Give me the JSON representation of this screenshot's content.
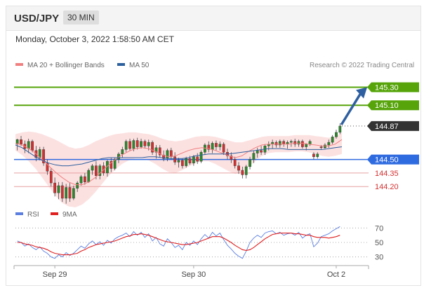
{
  "header": {
    "symbol": "USD/JPY",
    "timeframe": "30 MIN"
  },
  "timestamp": "Monday, October 3, 2022 1:58:50 AM CET",
  "legend": {
    "bollinger": {
      "label": "MA 20 + Bollinger Bands",
      "color": "#f08080"
    },
    "ma50": {
      "label": "MA 50",
      "color": "#2c5f9e"
    },
    "rsi": {
      "label": "RSI",
      "color": "#5b7fe0"
    },
    "ma9": {
      "label": "9MA",
      "color": "#e02020"
    }
  },
  "credit": "Research © 2022 Trading Central",
  "colors": {
    "up": "#2a8a2a",
    "down": "#d43030",
    "wick": "#444444",
    "band": "#fcdede",
    "green_level": "#56a40a",
    "blue_level": "#2f6be0",
    "red_level": "#e8a0a0",
    "arrow": "#2e5fa0"
  },
  "chart_data": [
    {
      "type": "candlestick",
      "ylim": [
        144.0,
        145.42
      ],
      "levels": [
        {
          "value": 145.3,
          "label": "145.30",
          "style": "green"
        },
        {
          "value": 145.1,
          "label": "145.10",
          "style": "green"
        },
        {
          "value": 144.87,
          "label": "144.87",
          "style": "current"
        },
        {
          "value": 144.5,
          "label": "144.50",
          "style": "blue"
        },
        {
          "value": 144.35,
          "label": "144.35",
          "style": "red"
        },
        {
          "value": 144.2,
          "label": "144.20",
          "style": "red"
        }
      ],
      "x_ticks": [
        "Sep 29",
        "Sep 30",
        "Oct 2"
      ],
      "candles": [
        [
          144.67,
          144.73,
          144.6,
          144.72
        ],
        [
          144.72,
          144.76,
          144.65,
          144.67
        ],
        [
          144.67,
          144.71,
          144.57,
          144.62
        ],
        [
          144.62,
          144.73,
          144.57,
          144.7
        ],
        [
          144.7,
          144.72,
          144.58,
          144.6
        ],
        [
          144.6,
          144.65,
          144.48,
          144.52
        ],
        [
          144.52,
          144.64,
          144.49,
          144.61
        ],
        [
          144.61,
          144.64,
          144.43,
          144.46
        ],
        [
          144.46,
          144.5,
          144.33,
          144.37
        ],
        [
          144.37,
          144.4,
          144.2,
          144.24
        ],
        [
          144.24,
          144.3,
          144.09,
          144.13
        ],
        [
          144.13,
          144.25,
          144.06,
          144.21
        ],
        [
          144.21,
          144.25,
          144.03,
          144.07
        ],
        [
          144.07,
          144.23,
          144.01,
          144.19
        ],
        [
          144.19,
          144.24,
          144.03,
          144.07
        ],
        [
          144.07,
          144.21,
          144.05,
          144.18
        ],
        [
          144.18,
          144.26,
          144.14,
          144.24
        ],
        [
          144.24,
          144.33,
          144.21,
          144.31
        ],
        [
          144.31,
          144.35,
          144.22,
          144.25
        ],
        [
          144.25,
          144.4,
          144.24,
          144.38
        ],
        [
          144.38,
          144.45,
          144.33,
          144.43
        ],
        [
          144.43,
          144.48,
          144.28,
          144.32
        ],
        [
          144.32,
          144.45,
          144.28,
          144.43
        ],
        [
          144.43,
          144.47,
          144.32,
          144.35
        ],
        [
          144.35,
          144.5,
          144.31,
          144.48
        ],
        [
          144.48,
          144.52,
          144.36,
          144.4
        ],
        [
          144.4,
          144.52,
          144.38,
          144.5
        ],
        [
          144.5,
          144.58,
          144.46,
          144.56
        ],
        [
          144.56,
          144.64,
          144.52,
          144.61
        ],
        [
          144.61,
          144.72,
          144.58,
          144.7
        ],
        [
          144.7,
          144.73,
          144.6,
          144.62
        ],
        [
          144.62,
          144.73,
          144.59,
          144.71
        ],
        [
          144.71,
          144.74,
          144.61,
          144.64
        ],
        [
          144.64,
          144.73,
          144.62,
          144.7
        ],
        [
          144.7,
          144.72,
          144.62,
          144.65
        ],
        [
          144.65,
          144.72,
          144.6,
          144.69
        ],
        [
          144.69,
          144.71,
          144.55,
          144.58
        ],
        [
          144.58,
          144.66,
          144.51,
          144.63
        ],
        [
          144.63,
          144.66,
          144.52,
          144.55
        ],
        [
          144.55,
          144.6,
          144.48,
          144.51
        ],
        [
          144.51,
          144.62,
          144.48,
          144.6
        ],
        [
          144.6,
          144.63,
          144.5,
          144.53
        ],
        [
          144.53,
          144.58,
          144.44,
          144.47
        ],
        [
          144.47,
          144.52,
          144.41,
          144.49
        ],
        [
          144.49,
          144.51,
          144.4,
          144.43
        ],
        [
          144.43,
          144.53,
          144.41,
          144.51
        ],
        [
          144.51,
          144.54,
          144.44,
          144.46
        ],
        [
          144.46,
          144.55,
          144.43,
          144.53
        ],
        [
          144.53,
          144.57,
          144.45,
          144.48
        ],
        [
          144.48,
          144.6,
          144.46,
          144.58
        ],
        [
          144.58,
          144.68,
          144.55,
          144.66
        ],
        [
          144.66,
          144.7,
          144.58,
          144.61
        ],
        [
          144.61,
          144.7,
          144.57,
          144.68
        ],
        [
          144.68,
          144.71,
          144.6,
          144.64
        ],
        [
          144.64,
          144.7,
          144.6,
          144.67
        ],
        [
          144.67,
          144.69,
          144.55,
          144.58
        ],
        [
          144.58,
          144.62,
          144.5,
          144.54
        ],
        [
          144.54,
          144.58,
          144.46,
          144.5
        ],
        [
          144.5,
          144.53,
          144.4,
          144.43
        ],
        [
          144.43,
          144.47,
          144.34,
          144.38
        ],
        [
          144.38,
          144.42,
          144.29,
          144.33
        ],
        [
          144.33,
          144.44,
          144.29,
          144.42
        ],
        [
          144.42,
          144.53,
          144.39,
          144.5
        ],
        [
          144.5,
          144.6,
          144.46,
          144.57
        ],
        [
          144.57,
          144.63,
          144.52,
          144.6
        ],
        [
          144.6,
          144.65,
          144.55,
          144.58
        ],
        [
          144.58,
          144.67,
          144.55,
          144.65
        ],
        [
          144.65,
          144.7,
          144.6,
          144.67
        ],
        [
          144.67,
          144.72,
          144.62,
          144.69
        ],
        [
          144.69,
          144.71,
          144.63,
          144.66
        ],
        [
          144.66,
          144.72,
          144.63,
          144.7
        ],
        [
          144.7,
          144.72,
          144.64,
          144.67
        ],
        [
          144.67,
          144.71,
          144.62,
          144.69
        ],
        [
          144.69,
          144.72,
          144.64,
          144.7
        ],
        [
          144.7,
          144.73,
          144.64,
          144.67
        ],
        [
          144.67,
          144.72,
          144.64,
          144.7
        ],
        [
          144.7,
          144.72,
          144.62,
          144.64
        ],
        [
          144.64,
          144.68,
          144.6,
          144.67
        ],
        [
          144.67,
          144.72,
          144.65,
          144.7
        ],
        [
          144.56,
          144.58,
          144.5,
          144.53
        ],
        [
          144.53,
          144.58,
          144.51,
          144.56
        ],
        [
          144.64,
          144.66,
          144.61,
          144.63
        ],
        [
          144.63,
          144.68,
          144.61,
          144.66
        ],
        [
          144.66,
          144.72,
          144.63,
          144.69
        ],
        [
          144.69,
          144.77,
          144.67,
          144.75
        ],
        [
          144.75,
          144.83,
          144.73,
          144.8
        ],
        [
          144.8,
          144.9,
          144.78,
          144.87
        ]
      ],
      "ma20": [
        144.68,
        144.66,
        144.62,
        144.57,
        144.5,
        144.43,
        144.36,
        144.3,
        144.25,
        144.22,
        144.22,
        144.25,
        144.3,
        144.37,
        144.44,
        144.5,
        144.55,
        144.59,
        144.62,
        144.63,
        144.62,
        144.59,
        144.55,
        144.53,
        144.54,
        144.57,
        144.6,
        144.62,
        144.63,
        144.62,
        144.6,
        144.57,
        144.54,
        144.52,
        144.54,
        144.59,
        144.63,
        144.66,
        144.67,
        144.67,
        144.67,
        144.67,
        144.68,
        144.68,
        144.67,
        144.66,
        144.65,
        144.65,
        144.67,
        144.72
      ],
      "ma50": [
        144.66,
        144.63,
        144.58,
        144.53,
        144.49,
        144.46,
        144.44,
        144.43,
        144.43,
        144.44,
        144.45,
        144.47,
        144.49,
        144.51,
        144.52,
        144.52,
        144.52,
        144.52,
        144.52,
        144.52,
        144.53,
        144.53,
        144.52,
        144.51,
        144.51,
        144.51,
        144.52,
        144.54,
        144.55,
        144.56,
        144.56,
        144.56,
        144.56,
        144.57,
        144.58,
        144.59,
        144.6,
        144.61,
        144.62,
        144.62,
        144.62,
        144.61,
        144.61,
        144.61,
        144.61,
        144.61,
        144.61,
        144.62,
        144.63,
        144.64
      ],
      "band_upper": [
        144.78,
        144.8,
        144.81,
        144.8,
        144.78,
        144.75,
        144.72,
        144.68,
        144.64,
        144.62,
        144.63,
        144.66,
        144.7,
        144.73,
        144.76,
        144.78,
        144.79,
        144.8,
        144.8,
        144.79,
        144.78,
        144.76,
        144.73,
        144.71,
        144.7,
        144.71,
        144.73,
        144.75,
        144.76,
        144.76,
        144.75,
        144.73,
        144.71,
        144.69,
        144.69,
        144.71,
        144.73,
        144.75,
        144.76,
        144.76,
        144.76,
        144.76,
        144.77,
        144.77,
        144.77,
        144.76,
        144.75,
        144.74,
        144.75,
        144.8
      ],
      "band_lower": [
        144.6,
        144.55,
        144.48,
        144.4,
        144.3,
        144.2,
        144.1,
        144.02,
        143.98,
        143.97,
        144.0,
        144.06,
        144.14,
        144.23,
        144.32,
        144.39,
        144.45,
        144.49,
        144.51,
        144.51,
        144.49,
        144.45,
        144.4,
        144.36,
        144.35,
        144.38,
        144.42,
        144.46,
        144.48,
        144.48,
        144.45,
        144.41,
        144.37,
        144.34,
        144.36,
        144.42,
        144.48,
        144.54,
        144.57,
        144.58,
        144.58,
        144.58,
        144.59,
        144.59,
        144.58,
        144.56,
        144.54,
        144.53,
        144.54,
        144.56
      ]
    },
    {
      "type": "line",
      "title": "RSI",
      "y_ticks": [
        70,
        50,
        30
      ],
      "ylim": [
        20,
        80
      ],
      "series": [
        {
          "name": "RSI",
          "values": [
            52,
            50,
            45,
            48,
            43,
            40,
            44,
            38,
            35,
            30,
            28,
            33,
            30,
            36,
            32,
            35,
            40,
            45,
            42,
            48,
            52,
            47,
            51,
            46,
            53,
            49,
            55,
            58,
            60,
            63,
            58,
            65,
            60,
            64,
            57,
            62,
            52,
            57,
            48,
            45,
            55,
            50,
            43,
            46,
            40,
            50,
            46,
            52,
            47,
            55,
            61,
            56,
            64,
            59,
            63,
            54,
            46,
            41,
            35,
            31,
            28,
            38,
            50,
            56,
            60,
            57,
            63,
            65,
            66,
            62,
            64,
            60,
            62,
            63,
            60,
            64,
            56,
            60,
            62,
            44,
            49,
            58,
            60,
            62,
            66,
            69,
            72
          ]
        },
        {
          "name": "9MA",
          "values": [
            50,
            50,
            48,
            47,
            46,
            44,
            43,
            42,
            40,
            37,
            35,
            34,
            33,
            33,
            33,
            34,
            35,
            38,
            40,
            43,
            45,
            47,
            48,
            49,
            50,
            51,
            52,
            54,
            56,
            58,
            59,
            61,
            61,
            62,
            61,
            60,
            58,
            56,
            54,
            52,
            51,
            50,
            49,
            48,
            47,
            47,
            48,
            49,
            50,
            52,
            54,
            56,
            58,
            58,
            58,
            56,
            53,
            50,
            46,
            43,
            40,
            39,
            40,
            43,
            47,
            51,
            55,
            58,
            61,
            62,
            63,
            63,
            63,
            63,
            62,
            62,
            61,
            60,
            60,
            58,
            57,
            57,
            57,
            56,
            57,
            58,
            60
          ]
        }
      ]
    }
  ]
}
